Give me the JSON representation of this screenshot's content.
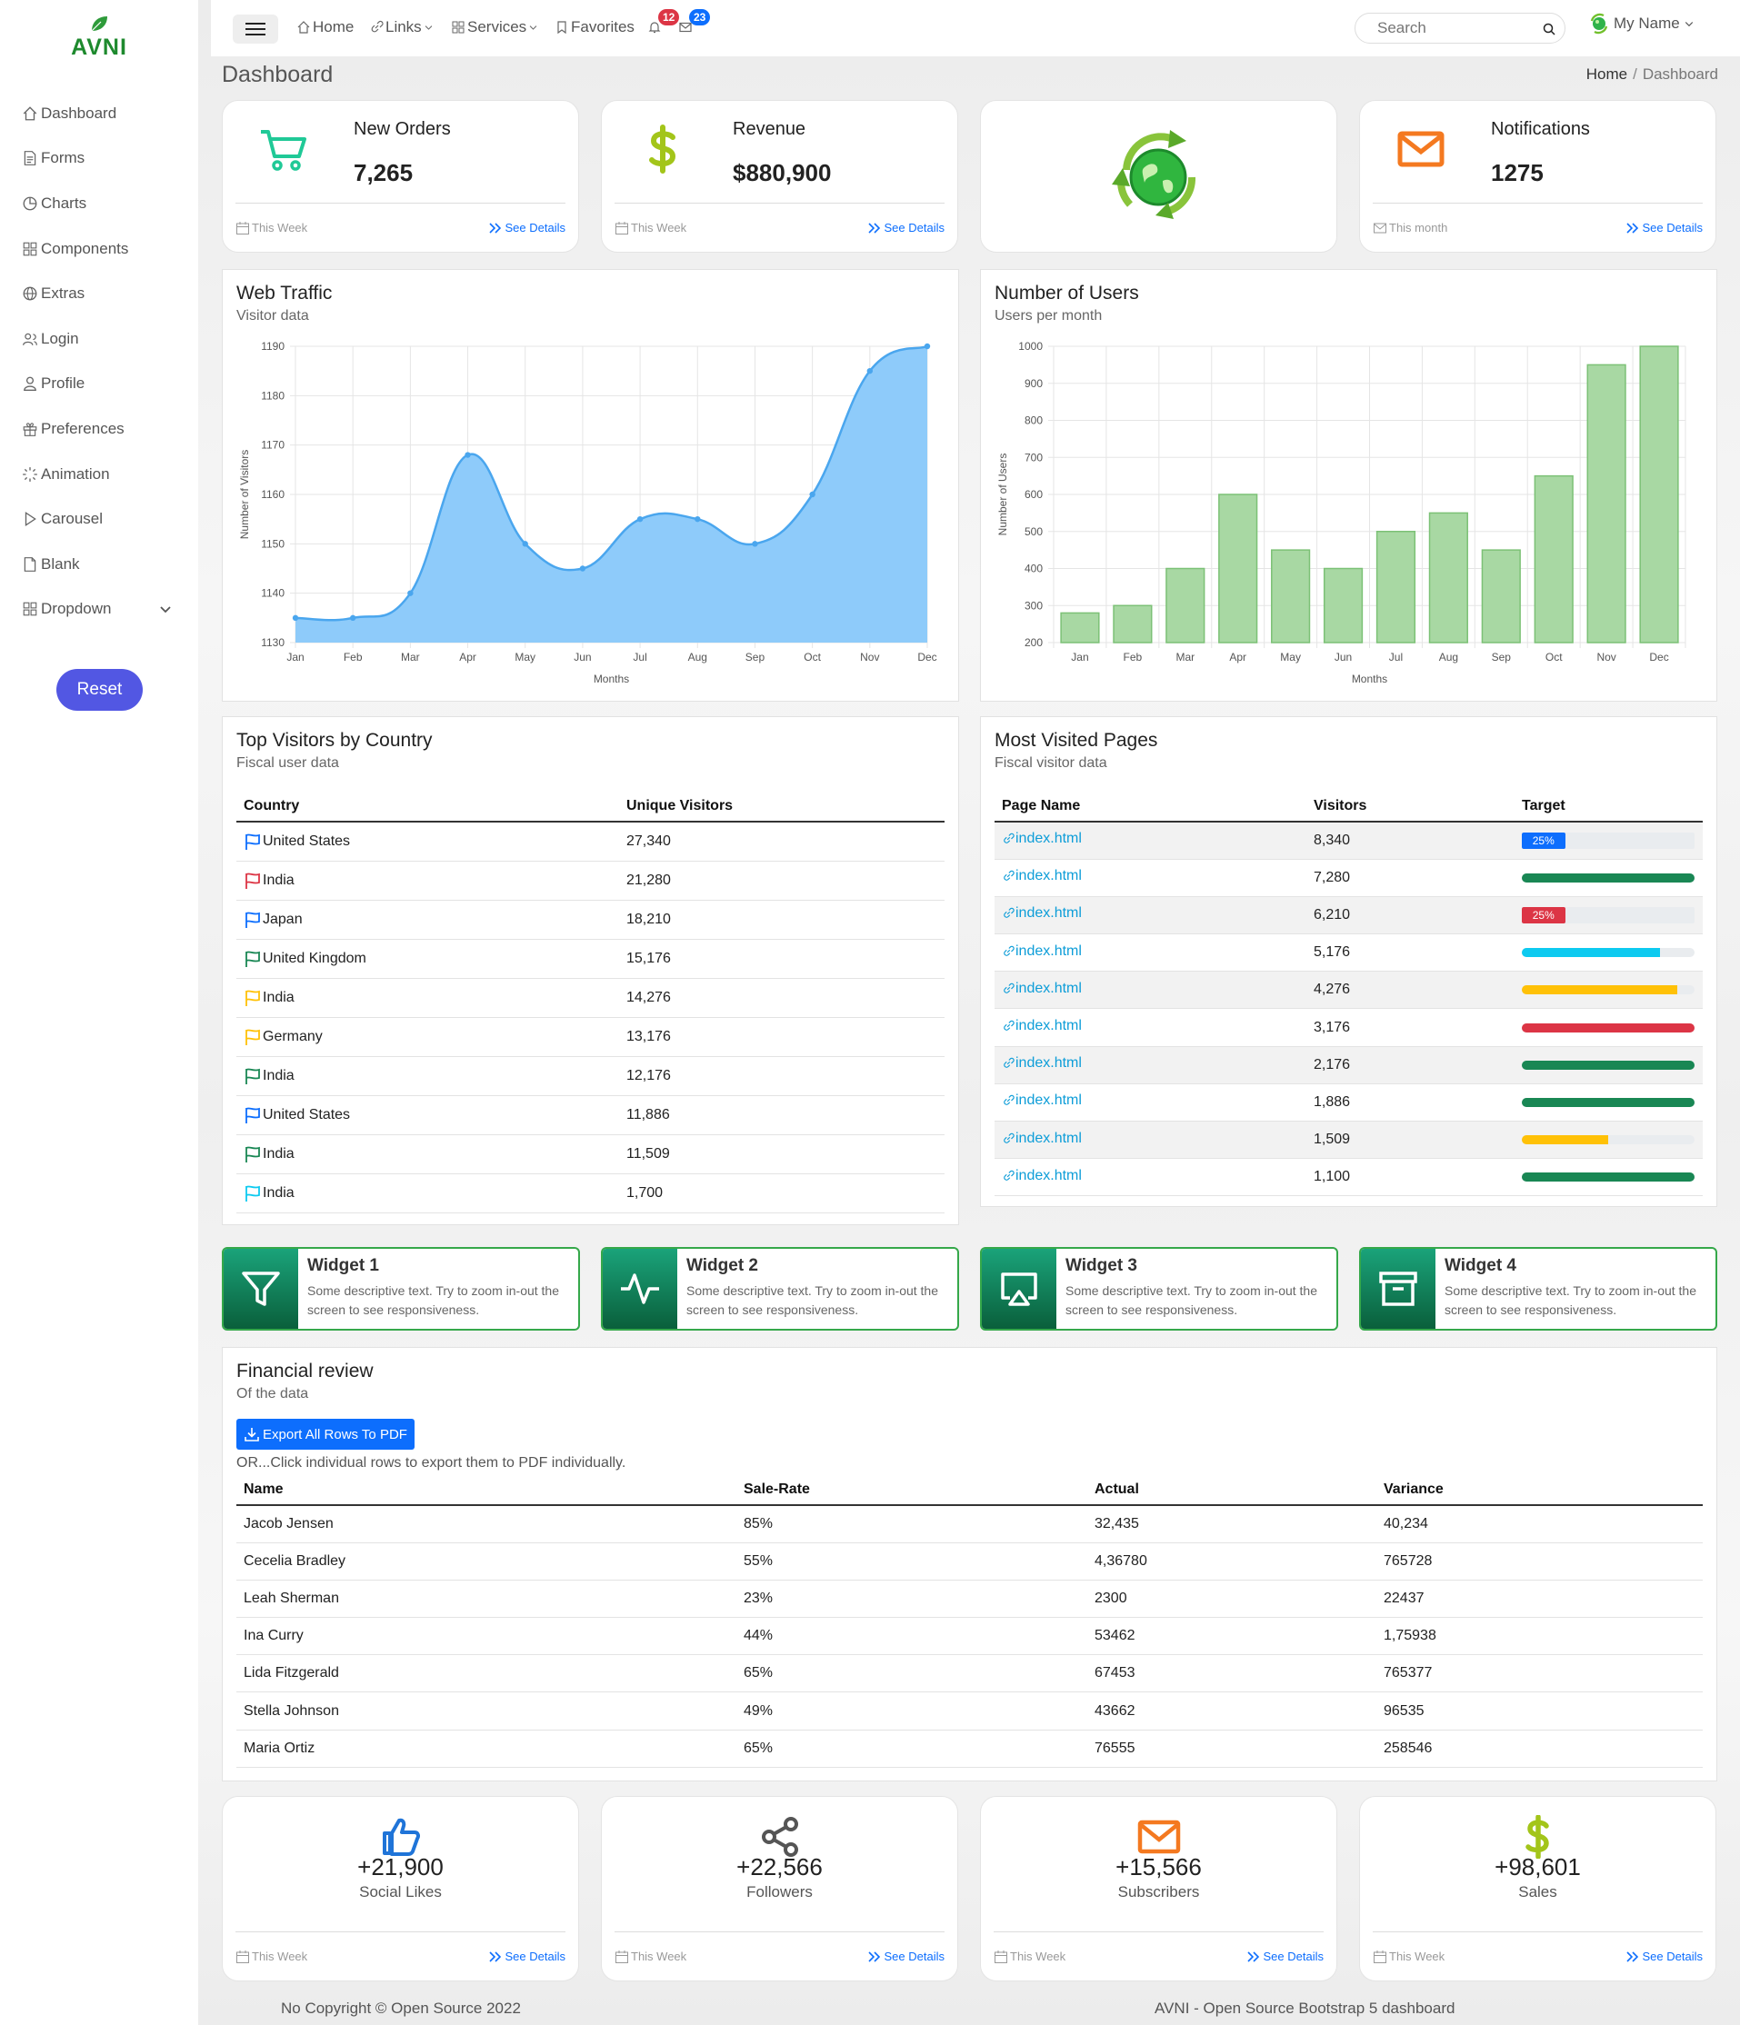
{
  "brand": {
    "name": "AVNI"
  },
  "sidebar": {
    "items": [
      {
        "label": "Dashboard",
        "icon": "home-icon"
      },
      {
        "label": "Forms",
        "icon": "document-icon"
      },
      {
        "label": "Charts",
        "icon": "pie-chart-icon"
      },
      {
        "label": "Components",
        "icon": "grid-icon"
      },
      {
        "label": "Extras",
        "icon": "globe-icon"
      },
      {
        "label": "Login",
        "icon": "users-icon"
      },
      {
        "label": "Profile",
        "icon": "person-icon"
      },
      {
        "label": "Preferences",
        "icon": "gift-icon"
      },
      {
        "label": "Animation",
        "icon": "sparkle-icon"
      },
      {
        "label": "Carousel",
        "icon": "play-icon"
      },
      {
        "label": "Blank",
        "icon": "file-icon"
      },
      {
        "label": "Dropdown",
        "icon": "grid-icon"
      }
    ],
    "reset_label": "Reset"
  },
  "topbar": {
    "home": "Home",
    "links": "Links",
    "services": "Services",
    "favorites": "Favorites",
    "notif_count": "12",
    "mail_count": "23",
    "search_placeholder": "Search",
    "user_name": "My Name"
  },
  "page": {
    "title": "Dashboard",
    "breadcrumb": [
      "Home",
      "Dashboard"
    ]
  },
  "stats": [
    {
      "label": "New Orders",
      "value": "7,265",
      "period": "This Week",
      "link": "See Details",
      "icon": "cart-icon",
      "color": "#20c997"
    },
    {
      "label": "Revenue",
      "value": "$880,900",
      "period": "This Week",
      "link": "See Details",
      "icon": "dollar-icon",
      "color": "#a3c51a"
    },
    {
      "icon": "globe-recycle-icon"
    },
    {
      "label": "Notifications",
      "value": "1275",
      "period": "This month",
      "link": "See Details",
      "icon": "mail-icon",
      "color": "#f47920"
    }
  ],
  "traffic": {
    "title": "Web Traffic",
    "subtitle": "Visitor data"
  },
  "users": {
    "title": "Number of Users",
    "subtitle": "Users per month"
  },
  "chart_data": [
    {
      "type": "area",
      "categories": [
        "Jan",
        "Feb",
        "Mar",
        "Apr",
        "May",
        "Jun",
        "Jul",
        "Aug",
        "Sep",
        "Oct",
        "Nov",
        "Dec"
      ],
      "values": [
        1135,
        1135,
        1140,
        1168,
        1150,
        1145,
        1155,
        1155,
        1150,
        1160,
        1185,
        1190
      ],
      "xlabel": "Months",
      "ylabel": "Number of Visitors",
      "ylim": [
        1130,
        1190
      ],
      "yticks": [
        1130,
        1140,
        1150,
        1160,
        1170,
        1180,
        1190
      ],
      "color": "#8ecbfa",
      "line_color": "#4aa6ee",
      "grid": true
    },
    {
      "type": "bar",
      "categories": [
        "Jan",
        "Feb",
        "Mar",
        "Apr",
        "May",
        "Jun",
        "Jul",
        "Aug",
        "Sep",
        "Oct",
        "Nov",
        "Dec"
      ],
      "values": [
        280,
        300,
        400,
        600,
        450,
        400,
        500,
        550,
        450,
        650,
        950,
        1000
      ],
      "xlabel": "Months",
      "ylabel": "Number of Users",
      "ylim": [
        200,
        1000
      ],
      "yticks": [
        200,
        300,
        400,
        500,
        600,
        700,
        800,
        900,
        1000
      ],
      "color": "#a8d8a3",
      "border_color": "#7cc176",
      "grid": true
    }
  ],
  "countries": {
    "title": "Top Visitors by Country",
    "subtitle": "Fiscal user data",
    "headers": [
      "Country",
      "Unique Visitors"
    ],
    "rows": [
      {
        "name": "United States",
        "visitors": "27,340",
        "flag_color": "#0d6efd"
      },
      {
        "name": "India",
        "visitors": "21,280",
        "flag_color": "#dc3545"
      },
      {
        "name": "Japan",
        "visitors": "18,210",
        "flag_color": "#0d6efd"
      },
      {
        "name": "United Kingdom",
        "visitors": "15,176",
        "flag_color": "#198754"
      },
      {
        "name": "India",
        "visitors": "14,276",
        "flag_color": "#ffc107"
      },
      {
        "name": "Germany",
        "visitors": "13,176",
        "flag_color": "#ffc107"
      },
      {
        "name": "India",
        "visitors": "12,176",
        "flag_color": "#198754"
      },
      {
        "name": "United States",
        "visitors": "11,886",
        "flag_color": "#0d6efd"
      },
      {
        "name": "India",
        "visitors": "11,509",
        "flag_color": "#198754"
      },
      {
        "name": "India",
        "visitors": "1,700",
        "flag_color": "#0dcaf0"
      }
    ]
  },
  "pages": {
    "title": "Most Visited Pages",
    "subtitle": "Fiscal visitor data",
    "headers": [
      "Page Name",
      "Visitors",
      "Target"
    ],
    "rows": [
      {
        "page": "index.html",
        "visitors": "8,340",
        "target": 25,
        "color": "#0d6efd",
        "label": "25%"
      },
      {
        "page": "index.html",
        "visitors": "7,280",
        "target": 100,
        "color": "#198754",
        "label": ""
      },
      {
        "page": "index.html",
        "visitors": "6,210",
        "target": 25,
        "color": "#dc3545",
        "label": "25%"
      },
      {
        "page": "index.html",
        "visitors": "5,176",
        "target": 80,
        "color": "#0dcaf0",
        "label": ""
      },
      {
        "page": "index.html",
        "visitors": "4,276",
        "target": 90,
        "color": "#ffc107",
        "label": ""
      },
      {
        "page": "index.html",
        "visitors": "3,176",
        "target": 100,
        "color": "#dc3545",
        "label": ""
      },
      {
        "page": "index.html",
        "visitors": "2,176",
        "target": 100,
        "color": "#198754",
        "label": ""
      },
      {
        "page": "index.html",
        "visitors": "1,886",
        "target": 100,
        "color": "#198754",
        "label": ""
      },
      {
        "page": "index.html",
        "visitors": "1,509",
        "target": 50,
        "color": "#ffc107",
        "label": ""
      },
      {
        "page": "index.html",
        "visitors": "1,100",
        "target": 100,
        "color": "#198754",
        "label": ""
      }
    ]
  },
  "widgets": [
    {
      "title": "Widget 1",
      "desc": "Some descriptive text. Try to zoom in-out the screen to see responsiveness.",
      "icon": "filter-icon"
    },
    {
      "title": "Widget 2",
      "desc": "Some descriptive text. Try to zoom in-out the screen to see responsiveness.",
      "icon": "activity-icon"
    },
    {
      "title": "Widget 3",
      "desc": "Some descriptive text. Try to zoom in-out the screen to see responsiveness.",
      "icon": "cast-icon"
    },
    {
      "title": "Widget 4",
      "desc": "Some descriptive text. Try to zoom in-out the screen to see responsiveness.",
      "icon": "archive-icon"
    }
  ],
  "financial": {
    "title": "Financial review",
    "subtitle": "Of the data",
    "export_label": "Export All Rows To PDF",
    "note": "OR...Click individual rows to export them to PDF individually.",
    "headers": [
      "Name",
      "Sale-Rate",
      "Actual",
      "Variance"
    ],
    "rows": [
      [
        "Jacob Jensen",
        "85%",
        "32,435",
        "40,234"
      ],
      [
        "Cecelia Bradley",
        "55%",
        "4,36780",
        "765728"
      ],
      [
        "Leah Sherman",
        "23%",
        "2300",
        "22437"
      ],
      [
        "Ina Curry",
        "44%",
        "53462",
        "1,75938"
      ],
      [
        "Lida Fitzgerald",
        "65%",
        "67453",
        "765377"
      ],
      [
        "Stella Johnson",
        "49%",
        "43662",
        "96535"
      ],
      [
        "Maria Ortiz",
        "65%",
        "76555",
        "258546"
      ]
    ]
  },
  "bottom_stats": [
    {
      "value": "+21,900",
      "label": "Social Likes",
      "period": "This Week",
      "link": "See Details",
      "icon": "thumbs-up-icon",
      "color": "#1f74d8"
    },
    {
      "value": "+22,566",
      "label": "Followers",
      "period": "This Week",
      "link": "See Details",
      "icon": "share-icon",
      "color": "#555555"
    },
    {
      "value": "+15,566",
      "label": "Subscribers",
      "period": "This Week",
      "link": "See Details",
      "icon": "mail-icon",
      "color": "#f47920"
    },
    {
      "value": "+98,601",
      "label": "Sales",
      "period": "This Week",
      "link": "See Details",
      "icon": "dollar-icon",
      "color": "#a3c51a"
    }
  ],
  "footer": {
    "left": "No Copyright © Open Source 2022",
    "right": "AVNI - Open Source Bootstrap 5 dashboard"
  }
}
